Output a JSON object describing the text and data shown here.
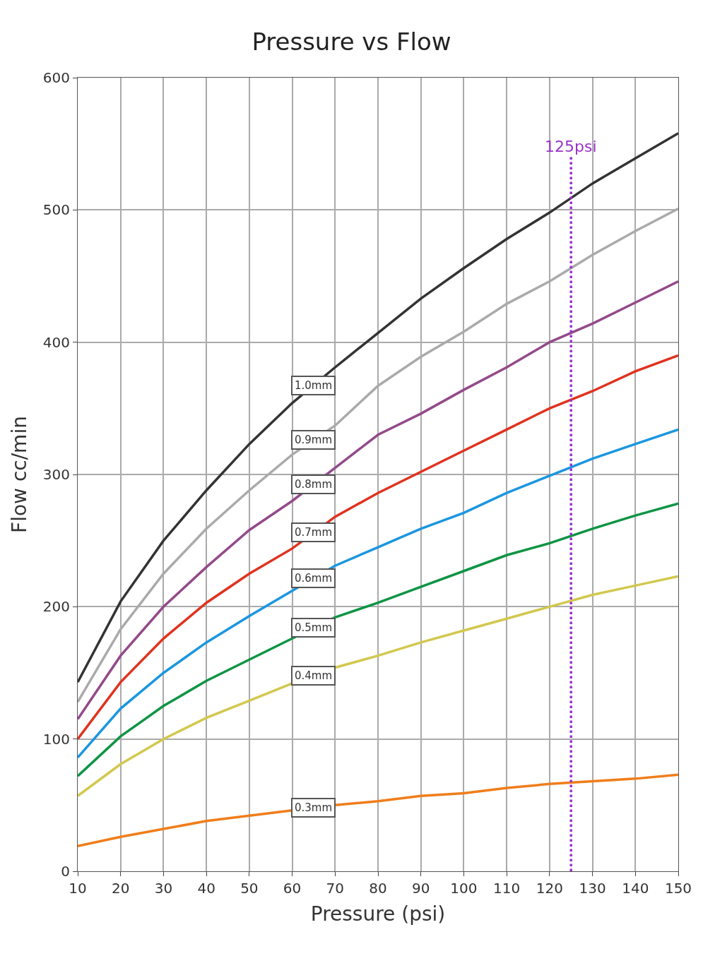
{
  "chart_data": {
    "type": "line",
    "title": "Pressure vs Flow",
    "xlabel": "Pressure (psi)",
    "ylabel": "Flow cc/min",
    "x": [
      10,
      20,
      30,
      40,
      50,
      60,
      70,
      80,
      90,
      100,
      110,
      120,
      130,
      140,
      150
    ],
    "series": [
      {
        "name": "1.0mm",
        "color": "#333333",
        "values": [
          143,
          204,
          250,
          288,
          323,
          354,
          381,
          407,
          433,
          456,
          478,
          498,
          520,
          539,
          558
        ]
      },
      {
        "name": "0.9mm",
        "color": "#aaaaaa",
        "values": [
          128,
          183,
          225,
          259,
          288,
          315,
          337,
          367,
          389,
          408,
          429,
          446,
          466,
          484,
          501
        ]
      },
      {
        "name": "0.8mm",
        "color": "#934a8a",
        "values": [
          115,
          163,
          200,
          230,
          258,
          280,
          305,
          330,
          346,
          364,
          381,
          400,
          414,
          430,
          446
        ]
      },
      {
        "name": "0.7mm",
        "color": "#e0321e",
        "values": [
          100,
          143,
          176,
          203,
          225,
          244,
          268,
          286,
          302,
          318,
          334,
          350,
          363,
          378,
          390
        ]
      },
      {
        "name": "0.6mm",
        "color": "#1a96e0",
        "values": [
          86,
          123,
          150,
          173,
          193,
          212,
          231,
          245,
          259,
          271,
          286,
          299,
          312,
          323,
          334
        ]
      },
      {
        "name": "0.5mm",
        "color": "#0e9444",
        "values": [
          72,
          102,
          125,
          144,
          160,
          176,
          192,
          203,
          215,
          227,
          239,
          248,
          259,
          269,
          278
        ]
      },
      {
        "name": "0.4mm",
        "color": "#d2c84e",
        "values": [
          57,
          81,
          100,
          116,
          129,
          142,
          154,
          163,
          173,
          182,
          191,
          200,
          209,
          216,
          223
        ]
      },
      {
        "name": "0.3mm",
        "color": "#f07d1a",
        "values": [
          19,
          26,
          32,
          38,
          42,
          46,
          50,
          53,
          57,
          59,
          63,
          66,
          68,
          70,
          73
        ]
      }
    ],
    "xlim": [
      10,
      150
    ],
    "xticks": [
      10,
      20,
      30,
      40,
      50,
      60,
      70,
      80,
      90,
      100,
      110,
      120,
      130,
      140,
      150
    ],
    "ylim": [
      0,
      600
    ],
    "yticks": [
      0,
      100,
      200,
      300,
      400,
      500,
      600
    ],
    "ref_lines": [
      {
        "axis": "x",
        "value": 125,
        "label": "125psi",
        "color": "#9933cc",
        "line_style": "dotted"
      }
    ],
    "grid": true,
    "legend": false,
    "marker": "none",
    "line_style": "solid"
  }
}
